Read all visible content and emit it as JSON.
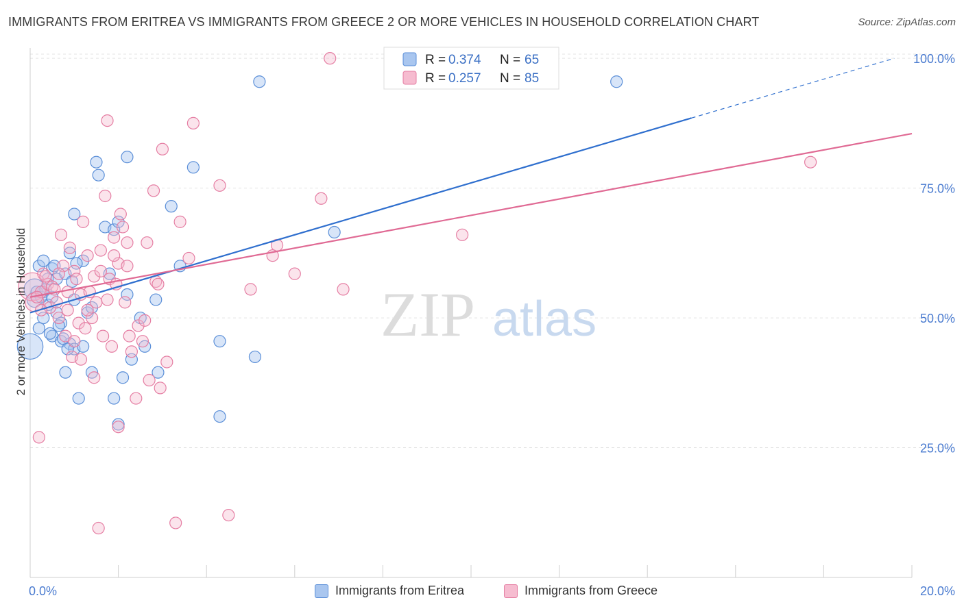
{
  "title": "IMMIGRANTS FROM ERITREA VS IMMIGRANTS FROM GREECE 2 OR MORE VEHICLES IN HOUSEHOLD CORRELATION CHART",
  "source": "Source: ZipAtlas.com",
  "watermark": {
    "zip": "ZIP",
    "atlas": "atlas"
  },
  "colors": {
    "eritrea_fill": "#a9c6ef",
    "eritrea_stroke": "#5b8fd8",
    "eritrea_line": "#2f6fce",
    "greece_fill": "#f6bcd0",
    "greece_stroke": "#e57ea3",
    "greece_line": "#e06a94",
    "axis_tick": "#4a7bd0"
  },
  "legend": {
    "rows": [
      {
        "r_label": "R = ",
        "r_value": "0.374",
        "n_label": "N = ",
        "n_value": "65"
      },
      {
        "r_label": "R = ",
        "r_value": "0.257",
        "n_label": "N = ",
        "n_value": "85"
      }
    ]
  },
  "bottom_legend": {
    "eritrea": "Immigrants from Eritrea",
    "greece": "Immigrants from Greece"
  },
  "chart_data": {
    "type": "scatter",
    "title": "IMMIGRANTS FROM ERITREA VS IMMIGRANTS FROM GREECE 2 OR MORE VEHICLES IN HOUSEHOLD CORRELATION CHART",
    "xlabel": "",
    "ylabel": "2 or more Vehicles in Household",
    "xlim": [
      0,
      20
    ],
    "ylim": [
      0,
      102
    ],
    "x_tick_labels": [
      "0.0%",
      "20.0%"
    ],
    "y_ticks": [
      25,
      50,
      75,
      100
    ],
    "y_tick_labels": [
      "25.0%",
      "50.0%",
      "75.0%",
      "100.0%"
    ],
    "grid": true,
    "series": [
      {
        "name": "Immigrants from Eritrea",
        "R": 0.374,
        "N": 65,
        "trend": {
          "x0": 0,
          "y0": 51.0,
          "x1": 15.0,
          "y1": 88.5,
          "dash_to_x": 19.6,
          "dash_to_y": 100.0
        },
        "points": [
          [
            0.0,
            44.5,
            2.2
          ],
          [
            0.1,
            55.5,
            1.8
          ],
          [
            0.1,
            53.5,
            1.3
          ],
          [
            0.2,
            60,
            1
          ],
          [
            0.2,
            48,
            1
          ],
          [
            0.3,
            61,
            1
          ],
          [
            0.3,
            55,
            1
          ],
          [
            0.3,
            50,
            1
          ],
          [
            0.4,
            57.5,
            1
          ],
          [
            0.4,
            52.5,
            1
          ],
          [
            0.5,
            46.5,
            1
          ],
          [
            0.5,
            59.5,
            1
          ],
          [
            0.5,
            54,
            1
          ],
          [
            0.6,
            51,
            1
          ],
          [
            0.6,
            57.5,
            1
          ],
          [
            0.7,
            49,
            1
          ],
          [
            0.7,
            45.5,
            1
          ],
          [
            0.8,
            58.5,
            1
          ],
          [
            0.8,
            39.5,
            1
          ],
          [
            0.9,
            45,
            1
          ],
          [
            0.9,
            62.5,
            1
          ],
          [
            1.0,
            53.5,
            1
          ],
          [
            1.0,
            44,
            1
          ],
          [
            1.0,
            70,
            1
          ],
          [
            1.1,
            34.5,
            1
          ],
          [
            1.2,
            61,
            1
          ],
          [
            1.2,
            44.5,
            1
          ],
          [
            1.3,
            51,
            1
          ],
          [
            1.4,
            52,
            1
          ],
          [
            1.4,
            39.5,
            1
          ],
          [
            1.5,
            80,
            1
          ],
          [
            1.55,
            77.5,
            1
          ],
          [
            1.7,
            67.5,
            1
          ],
          [
            1.8,
            58.5,
            1
          ],
          [
            1.9,
            67,
            1
          ],
          [
            1.9,
            34.5,
            1
          ],
          [
            2.0,
            68.5,
            1
          ],
          [
            2.0,
            29.5,
            1
          ],
          [
            2.1,
            38.5,
            1
          ],
          [
            2.2,
            81,
            1
          ],
          [
            2.2,
            54.5,
            1
          ],
          [
            2.3,
            42,
            1
          ],
          [
            2.5,
            50,
            1
          ],
          [
            2.6,
            44.5,
            1
          ],
          [
            2.85,
            53.5,
            1
          ],
          [
            2.9,
            39.5,
            1
          ],
          [
            3.2,
            71.5,
            1
          ],
          [
            3.4,
            60,
            1
          ],
          [
            3.7,
            79,
            1
          ],
          [
            4.3,
            31,
            1
          ],
          [
            4.3,
            45.5,
            1
          ],
          [
            5.1,
            42.5,
            1
          ],
          [
            5.2,
            95.5,
            1
          ],
          [
            6.9,
            66.5,
            1
          ],
          [
            13.3,
            95.5,
            1
          ],
          [
            0.15,
            55,
            1
          ],
          [
            0.25,
            54,
            1
          ],
          [
            0.35,
            55.5,
            1
          ],
          [
            0.45,
            47,
            1
          ],
          [
            0.55,
            60,
            1
          ],
          [
            0.65,
            48.5,
            1
          ],
          [
            0.75,
            46,
            1
          ],
          [
            0.85,
            44,
            1
          ],
          [
            0.95,
            57,
            1
          ],
          [
            1.05,
            60.5,
            1
          ]
        ]
      },
      {
        "name": "Immigrants from Greece",
        "R": 0.257,
        "N": 85,
        "trend": {
          "x0": 0,
          "y0": 54.0,
          "x1": 20.0,
          "y1": 85.5
        },
        "points": [
          [
            0.05,
            56,
            2.4
          ],
          [
            0.1,
            53,
            1.6
          ],
          [
            0.2,
            27,
            1
          ],
          [
            0.25,
            55,
            1
          ],
          [
            0.3,
            58.5,
            1
          ],
          [
            0.4,
            56.5,
            1
          ],
          [
            0.45,
            52,
            1
          ],
          [
            0.5,
            56,
            1
          ],
          [
            0.6,
            53,
            1
          ],
          [
            0.65,
            50,
            1
          ],
          [
            0.7,
            66,
            1
          ],
          [
            0.75,
            60,
            1
          ],
          [
            0.8,
            46.5,
            1
          ],
          [
            0.85,
            55,
            1
          ],
          [
            0.9,
            63.5,
            1
          ],
          [
            0.95,
            42.5,
            1
          ],
          [
            1.0,
            59,
            1
          ],
          [
            1.05,
            57.5,
            1
          ],
          [
            1.1,
            49,
            1
          ],
          [
            1.15,
            54.5,
            1
          ],
          [
            1.2,
            68.5,
            1
          ],
          [
            1.25,
            48,
            1
          ],
          [
            1.3,
            62,
            1
          ],
          [
            1.35,
            55,
            1
          ],
          [
            1.4,
            50,
            1
          ],
          [
            1.45,
            38.5,
            1
          ],
          [
            1.5,
            53,
            1
          ],
          [
            1.55,
            9.5,
            1
          ],
          [
            1.6,
            63,
            1
          ],
          [
            1.65,
            46.5,
            1
          ],
          [
            1.7,
            73.5,
            1
          ],
          [
            1.75,
            88,
            1
          ],
          [
            1.8,
            57.5,
            1
          ],
          [
            1.85,
            44.5,
            1
          ],
          [
            1.9,
            65.5,
            1
          ],
          [
            1.95,
            56.5,
            1
          ],
          [
            2.0,
            60.5,
            1
          ],
          [
            2.05,
            70,
            1
          ],
          [
            2.1,
            67.5,
            1
          ],
          [
            2.15,
            53,
            1
          ],
          [
            2.2,
            64.5,
            1
          ],
          [
            2.25,
            46.5,
            1
          ],
          [
            2.3,
            43.5,
            1
          ],
          [
            2.4,
            34.5,
            1
          ],
          [
            2.45,
            48.5,
            1
          ],
          [
            2.55,
            45.5,
            1
          ],
          [
            2.65,
            64.5,
            1
          ],
          [
            2.7,
            38,
            1
          ],
          [
            2.8,
            74.5,
            1
          ],
          [
            2.85,
            57,
            1
          ],
          [
            2.95,
            36.5,
            1
          ],
          [
            3.0,
            82.5,
            1
          ],
          [
            3.1,
            41.5,
            1
          ],
          [
            3.3,
            10.5,
            1
          ],
          [
            3.4,
            68.5,
            1
          ],
          [
            3.6,
            61.5,
            1
          ],
          [
            3.7,
            87.5,
            1
          ],
          [
            4.3,
            75.5,
            1
          ],
          [
            4.5,
            12,
            1
          ],
          [
            5.0,
            55.5,
            1
          ],
          [
            5.5,
            62,
            1
          ],
          [
            5.6,
            64,
            1
          ],
          [
            6.0,
            58.5,
            1
          ],
          [
            6.6,
            73,
            1
          ],
          [
            6.8,
            100,
            1
          ],
          [
            7.1,
            55.5,
            1
          ],
          [
            9.8,
            66,
            1
          ],
          [
            17.7,
            80,
            1
          ],
          [
            0.15,
            54,
            1
          ],
          [
            0.35,
            58,
            1
          ],
          [
            0.55,
            55.5,
            1
          ],
          [
            0.65,
            58.5,
            1
          ],
          [
            0.85,
            51.5,
            1
          ],
          [
            1.0,
            45.5,
            1
          ],
          [
            1.15,
            42,
            1
          ],
          [
            1.3,
            51.5,
            1
          ],
          [
            1.45,
            58,
            1
          ],
          [
            1.6,
            59,
            1
          ],
          [
            1.75,
            53.5,
            1
          ],
          [
            1.9,
            62,
            1
          ],
          [
            2.0,
            29,
            1
          ],
          [
            2.2,
            60,
            1
          ],
          [
            2.6,
            49.5,
            1
          ],
          [
            2.9,
            56.5,
            1
          ],
          [
            0.25,
            51.5,
            1
          ]
        ]
      }
    ]
  }
}
